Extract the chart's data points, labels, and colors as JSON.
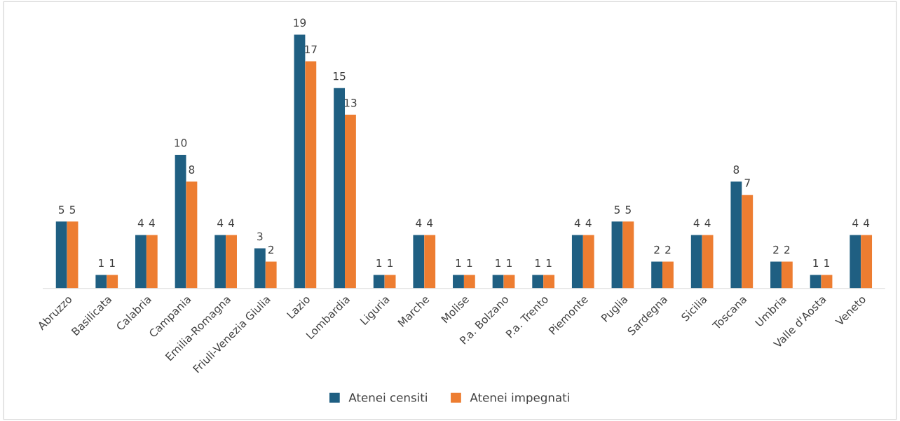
{
  "chart_data": {
    "type": "bar",
    "categories": [
      "Abruzzo",
      "Basilicata",
      "Calabria",
      "Campania",
      "Emilia-Romagna",
      "Friuli-Venezia Giulia",
      "Lazio",
      "Lombardia",
      "Liguria",
      "Marche",
      "Molise",
      "P.a. Bolzano",
      "P.a. Trento",
      "Piemonte",
      "Puglia",
      "Sardegna",
      "Sicilia",
      "Toscana",
      "Umbria",
      "Valle d'Aosta",
      "Veneto"
    ],
    "series": [
      {
        "name": "Atenei censiti",
        "color": "#1f5f82",
        "values": [
          5,
          1,
          4,
          10,
          4,
          3,
          19,
          15,
          1,
          4,
          1,
          1,
          1,
          4,
          5,
          2,
          4,
          8,
          2,
          1,
          4
        ]
      },
      {
        "name": "Atenei impegnati",
        "color": "#ed7d31",
        "values": [
          5,
          1,
          4,
          8,
          4,
          2,
          17,
          13,
          1,
          4,
          1,
          1,
          1,
          4,
          5,
          2,
          4,
          7,
          2,
          1,
          4
        ]
      }
    ],
    "data_labels": true,
    "legend": "bottom",
    "grid": false,
    "tick_labels": "x"
  }
}
